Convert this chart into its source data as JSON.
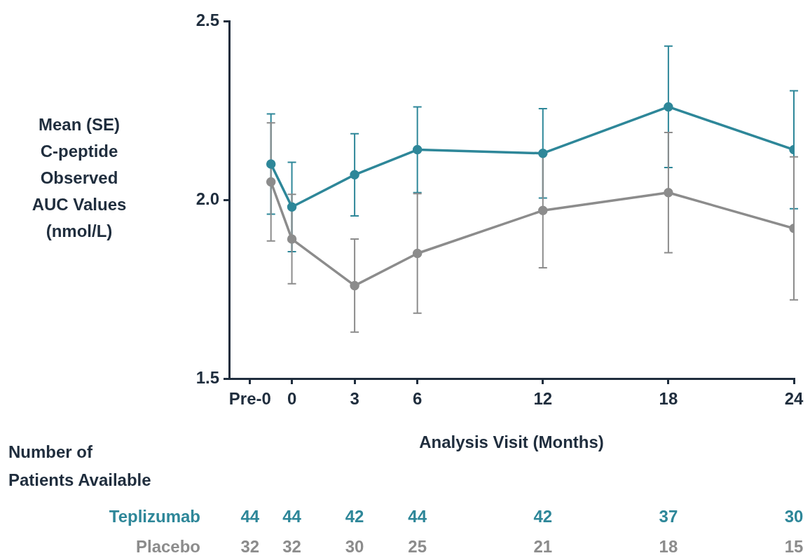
{
  "chart_data": {
    "type": "line",
    "xlabel": "Analysis Visit (Months)",
    "ylabel": "Mean (SE)\nC-peptide\nObserved\nAUC Values\n(nmol/L)",
    "x": [
      -1,
      0,
      3,
      6,
      12,
      18,
      24
    ],
    "series": [
      {
        "name": "Teplizumab",
        "color": "#2e8799",
        "values": [
          2.1,
          1.98,
          2.07,
          2.14,
          2.13,
          2.26,
          2.14
        ],
        "errors": [
          0.14,
          0.125,
          0.115,
          0.12,
          0.125,
          0.17,
          0.165
        ]
      },
      {
        "name": "Placebo",
        "color": "#8c8c8c",
        "values": [
          2.05,
          1.89,
          1.76,
          1.85,
          1.97,
          2.02,
          1.92
        ],
        "errors": [
          0.165,
          0.125,
          0.13,
          0.167,
          0.16,
          0.168,
          0.2
        ]
      }
    ],
    "xlim": [
      -3,
      24
    ],
    "xticks": [
      {
        "value": -2,
        "label": "Pre-0"
      },
      0,
      3,
      6,
      12,
      18,
      24
    ],
    "ylim": [
      1.5,
      2.5
    ],
    "yticks": [
      1.5,
      {
        "value": 2,
        "label": "2.0"
      },
      2.5
    ],
    "grid": false,
    "legend": false,
    "marker": "circle",
    "line_style": "solid",
    "annotations": [
      "Number of\nPatients Available",
      "44",
      "44",
      "42",
      "44",
      "42",
      "37",
      "30",
      "32",
      "32",
      "30",
      "25",
      "21",
      "18",
      "15"
    ]
  }
}
